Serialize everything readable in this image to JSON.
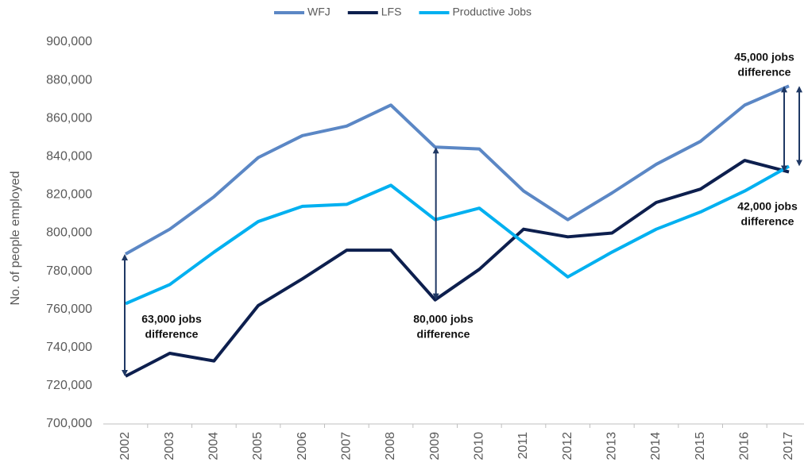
{
  "chart_data": {
    "type": "line",
    "y_label": "No. of people employed",
    "categories": [
      "2002",
      "2003",
      "2004",
      "2005",
      "2006",
      "2007",
      "2008",
      "2009",
      "2010",
      "2011",
      "2012",
      "2013",
      "2014",
      "2015",
      "2016",
      "2017"
    ],
    "series": [
      {
        "name": "WFJ",
        "color": "#5b87c5",
        "values": [
          789000,
          802000,
          819000,
          839500,
          851000,
          856000,
          867000,
          845000,
          844000,
          822000,
          807000,
          821000,
          836000,
          848000,
          867000,
          877000
        ]
      },
      {
        "name": "LFS",
        "color": "#0d1f4e",
        "values": [
          725000,
          737000,
          733000,
          762000,
          776000,
          791000,
          791000,
          765000,
          781000,
          802000,
          798000,
          800000,
          816000,
          823000,
          838000,
          832000
        ]
      },
      {
        "name": "Productive Jobs",
        "color": "#00b0f0",
        "values": [
          763000,
          773000,
          790000,
          806000,
          814000,
          815000,
          825000,
          807000,
          813000,
          795000,
          777000,
          790000,
          802000,
          811000,
          822000,
          835000
        ]
      }
    ],
    "ylim": [
      700000,
      900000
    ],
    "yticks": [
      {
        "value": 700000,
        "label": "700,000"
      },
      {
        "value": 720000,
        "label": "720,000"
      },
      {
        "value": 740000,
        "label": "740,000"
      },
      {
        "value": 760000,
        "label": "760,000"
      },
      {
        "value": 780000,
        "label": "780,000"
      },
      {
        "value": 800000,
        "label": "800,000"
      },
      {
        "value": 820000,
        "label": "820,000"
      },
      {
        "value": 840000,
        "label": "840,000"
      },
      {
        "value": 860000,
        "label": "860,000"
      },
      {
        "value": 880000,
        "label": "880,000"
      },
      {
        "value": 900000,
        "label": "900,000"
      }
    ],
    "grid": false,
    "legend": "top",
    "annotations": [
      [
        "63,000 jobs",
        "difference"
      ],
      [
        "80,000 jobs",
        "difference"
      ],
      [
        "45,000 jobs",
        "difference"
      ],
      [
        "42,000 jobs",
        "difference"
      ]
    ]
  }
}
